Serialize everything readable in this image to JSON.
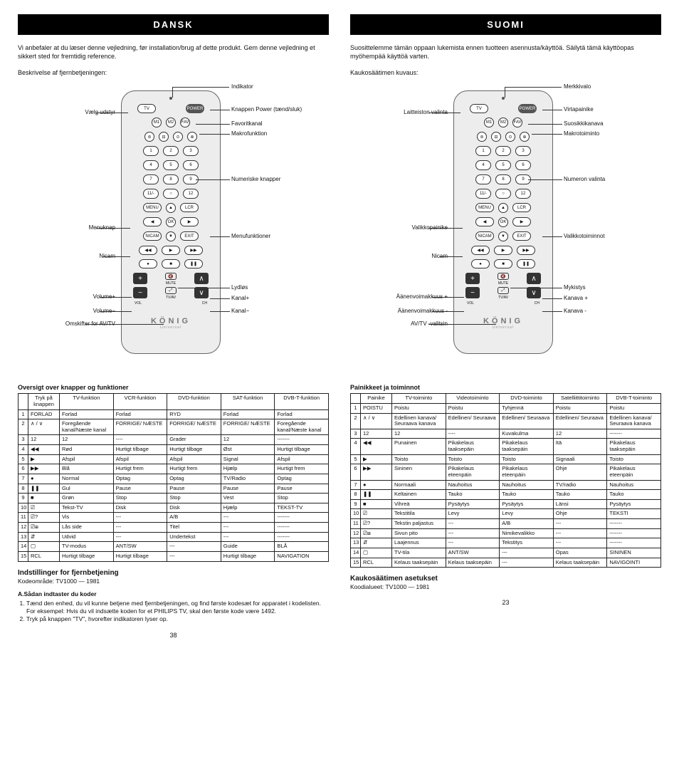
{
  "left": {
    "lang": "DANSK",
    "intro": "Vi anbefaler at du læser denne vejledning, før installation/brug af dette produkt. Gem denne vejledning et sikkert sted for fremtidig reference.",
    "desc": "Beskrivelse af fjernbetjeningen:",
    "labels": {
      "indicator": "Indikator",
      "select": "Vælg udstyr",
      "power": "Knappen Power (tænd/sluk)",
      "fav": "Favoritkanal",
      "macro": "Makrofunktion",
      "numeric": "Numeriske knapper",
      "menubtn": "Menuknap",
      "menufn": "Menufunktioner",
      "nicam": "Nicam",
      "mute": "Lydløs",
      "volp": "Volume+",
      "volm": "Volume−",
      "chp": "Kanal+",
      "chm": "Kanal−",
      "avtv": "Omskifter for AV/TV"
    },
    "table_title": "Oversigt over knapper og funktioner",
    "headers": [
      "",
      "Tryk på knappen",
      "TV-funktion",
      "VCR-funktion",
      "DVD-funktion",
      "SAT-funktion",
      "DVB-T-funktion"
    ],
    "rows": [
      [
        "1",
        "FORLAD",
        "Forlad",
        "Forlad",
        "RYD",
        "Forlad",
        "Forlad"
      ],
      [
        "2",
        "∧ / ∨",
        "Foregående kanal/Næste kanal",
        "FORRIGE/ NÆSTE",
        "FORRIGE/ NÆSTE",
        "FORRIGE/ NÆSTE",
        "Foregående kanal/Næste kanal"
      ],
      [
        "3",
        "12",
        "12",
        "----",
        "Grader",
        "12",
        "-------"
      ],
      [
        "4",
        "◀◀",
        "Rød",
        "Hurtigt tilbage",
        "Hurtigt tilbage",
        "Øst",
        "Hurtigt tilbage"
      ],
      [
        "5",
        "▶",
        "Afspil",
        "Afspil",
        "Afspil",
        "Signal",
        "Afspil"
      ],
      [
        "6",
        "▶▶",
        "Blå",
        "Hurtigt frem",
        "Hurtigt frem",
        "Hjælp",
        "Hurtigt frem"
      ],
      [
        "7",
        "●",
        "Normal",
        "Optag",
        "Optag",
        "TV/Radio",
        "Optag"
      ],
      [
        "8",
        "❚❚",
        "Gul",
        "Pause",
        "Pause",
        "Pause",
        "Pause"
      ],
      [
        "9",
        "■",
        "Grøn",
        "Stop",
        "Stop",
        "Vest",
        "Stop"
      ],
      [
        "10",
        "⎚",
        "Tekst-TV",
        "Disk",
        "Disk",
        "Hjælp",
        "TEKST-TV"
      ],
      [
        "11",
        "⎚?",
        "Vis",
        "---",
        "A/B",
        "---",
        "-------"
      ],
      [
        "12",
        "⎚⊞",
        "Lås side",
        "---",
        "Titel",
        "---",
        "-------"
      ],
      [
        "13",
        "⇵",
        "Udvid",
        "---",
        "Undertekst",
        "---",
        "-------"
      ],
      [
        "14",
        "▢",
        "TV-modus",
        "ANT/SW",
        "---",
        "Guide",
        "BLÅ"
      ],
      [
        "15",
        "RCL",
        "Hurtigt tilbage",
        "Hurtigt tilbage",
        "---",
        "Hurtigt tilbage",
        "NAVIGATION"
      ]
    ],
    "setup_title": "Indstillinger for fjernbetjening",
    "setup_sub": "Kodeområde: TV1000 — 1981",
    "sub_b": "A.Sådan indtaster du koder",
    "steps": [
      "Tænd den enhed, du vil kunne betjene med fjernbetjeningen, og find første kodesæt for apparatet i kodelisten. For eksempel: Hvis du vil indsætte koden for et PHILIPS TV, skal den første kode være 1492.",
      "Tryk på knappen \"TV\", hvorefter indikatoren lyser op."
    ],
    "pagenum": "38"
  },
  "right": {
    "lang": "SUOMI",
    "intro": "Suosittelemme tämän oppaan lukemista ennen tuotteen asennusta/käyttöä. Säilytä tämä käyttöopas myöhempää käyttöä varten.",
    "desc": "Kaukosäätimen kuvaus:",
    "labels": {
      "indicator": "Merkkivalo",
      "select": "Laitteiston valinta",
      "power": "Virtapainike",
      "fav": "Suosikkikanava",
      "macro": "Makrotoiminto",
      "numeric": "Numeron valinta",
      "menubtn": "Valikkopainike",
      "menufn": "Valikkotoiminnot",
      "nicam": "Nicam",
      "mute": "Mykistys",
      "volp": "Äänenvoimakkuus +",
      "volm": "Äänenvoimakkuus -",
      "chp": "Kanava +",
      "chm": "Kanava -",
      "avtv": "AV/TV -valitsin"
    },
    "table_title": "Painikkeet ja toiminnot",
    "headers": [
      "",
      "Painike",
      "TV-toiminto",
      "Videotoiminto",
      "DVD-toiminto",
      "Satelliittitoiminto",
      "DVB-T-toiminto"
    ],
    "rows": [
      [
        "1",
        "POISTU",
        "Poistu",
        "Poistu",
        "Tyhjennä",
        "Poistu",
        "Poistu"
      ],
      [
        "2",
        "∧ / ∨",
        "Edellinen kanava/ Seuraava kanava",
        "Edellinen/ Seuraava",
        "Edellinen/ Seuraava",
        "Edellinen/ Seuraava",
        "Edellinen kanava/ Seuraava kanava"
      ],
      [
        "3",
        "12",
        "12",
        "----",
        "Kuvakulma",
        "12",
        "-------"
      ],
      [
        "4",
        "◀◀",
        "Punainen",
        "Pikakelaus taaksepäin",
        "Pikakelaus taaksepäin",
        "Itä",
        "Pikakelaus taaksepäin"
      ],
      [
        "5",
        "▶",
        "Toisto",
        "Toisto",
        "Toisto",
        "Signaali",
        "Toisto"
      ],
      [
        "6",
        "▶▶",
        "Sininen",
        "Pikakelaus eteenpäin",
        "Pikakelaus eteenpäin",
        "Ohje",
        "Pikakelaus eteenpäin"
      ],
      [
        "7",
        "●",
        "Normaali",
        "Nauhoitus",
        "Nauhoitus",
        "TV/radio",
        "Nauhoitus"
      ],
      [
        "8",
        "❚❚",
        "Keltainen",
        "Tauko",
        "Tauko",
        "Tauko",
        "Tauko"
      ],
      [
        "9",
        "■",
        "Vihreä",
        "Pysäytys",
        "Pysäytys",
        "Länsi",
        "Pysäytys"
      ],
      [
        "10",
        "⎚",
        "Tekstitila",
        "Levy",
        "Levy",
        "Ohje",
        "TEKSTI"
      ],
      [
        "11",
        "⎚?",
        "Tekstin paljastus",
        "---",
        "A/B",
        "---",
        "-------"
      ],
      [
        "12",
        "⎚⊞",
        "Sivun pito",
        "---",
        "Nimikevalikko",
        "---",
        "-------"
      ],
      [
        "13",
        "⇵",
        "Laajennus",
        "---",
        "Tekstitys",
        "---",
        "-------"
      ],
      [
        "14",
        "▢",
        "TV-tila",
        "ANT/SW",
        "---",
        "Opas",
        "SININEN"
      ],
      [
        "15",
        "RCL",
        "Kelaus taaksepäin",
        "Kelaus taaksepäin",
        "---",
        "Kelaus taaksepäin",
        "NAVIGOINTI"
      ]
    ],
    "setup_title": "Kaukosäätimen asetukset",
    "setup_sub": "Koodialueet: TV1000 — 1981",
    "pagenum": "23"
  },
  "remote": {
    "tv": "TV",
    "power": "POWER",
    "m1": "M1",
    "m2": "M2",
    "fav": "FAV",
    "nums": [
      "1",
      "2",
      "3",
      "4",
      "5",
      "6",
      "7",
      "8",
      "9",
      "11/-",
      "○",
      "12"
    ],
    "menu": "MENU",
    "lcr": "LCR",
    "ok": "OK",
    "nicam": "NICAM",
    "exit": "EXIT",
    "mute": "MUTE",
    "tvav": "TV/AV",
    "vol": "VOL",
    "ch": "CH",
    "logo": "KÖNIG",
    "sublogo": "Universal"
  }
}
